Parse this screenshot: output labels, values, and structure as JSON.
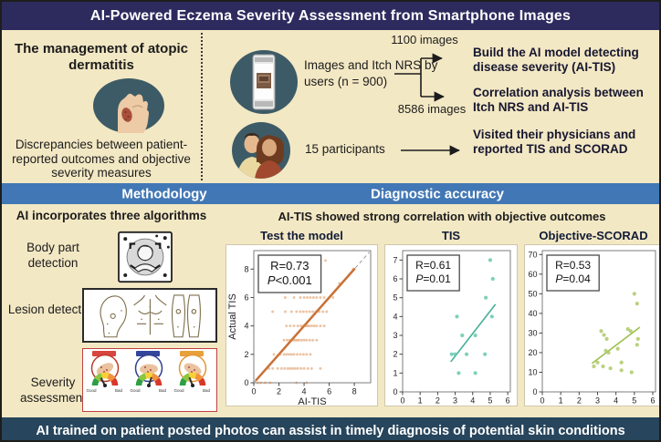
{
  "banner": {
    "title": "AI-Powered Eczema Severity Assessment from Smartphone Images"
  },
  "problem": {
    "heading": "The management of atopic dermatitis",
    "description": "Discrepancies between patient-reported outcomes and objective severity measures"
  },
  "study": {
    "phone_text": "Images and Itch NRS by users (n = 900)",
    "branch1_label": "1100 images",
    "branch1_text": "Build the AI model detecting disease severity (AI-TIS)",
    "branch2_label": "8586 images",
    "branch2_text": "Correlation analysis between Itch NRS and AI-TIS",
    "participants_label": "15 participants",
    "participants_text": "Visited their physicians and reported TIS and SCORAD"
  },
  "sections": {
    "methodology": "Methodology",
    "diagnostic": "Diagnostic accuracy"
  },
  "methodology": {
    "heading": "AI incorporates three algorithms",
    "steps": [
      {
        "label": "Body part detection"
      },
      {
        "label": "Lesion detection"
      },
      {
        "label": "Severity assessment"
      }
    ],
    "gauge": {
      "good": "Good",
      "bad": "Bad"
    },
    "severity_variants": [
      {
        "tag_color": "#d8453e",
        "circle_color": "#c0392b",
        "needle_deg": 118
      },
      {
        "tag_color": "#33459c",
        "circle_color": "#2f3f8f",
        "needle_deg": 72
      },
      {
        "tag_color": "#e8a03a",
        "circle_color": "#e2973a",
        "needle_deg": 112
      }
    ]
  },
  "diagnostic": {
    "heading": "AI-TIS showed strong correlation with objective outcomes"
  },
  "chart_data": [
    {
      "type": "scatter",
      "title": "Test the model",
      "xlabel": "AI-TIS",
      "ylabel": "Actual TIS",
      "xlim": [
        0,
        9.3
      ],
      "ylim": [
        0,
        9.3
      ],
      "xticks": [
        0,
        2,
        4,
        6,
        8
      ],
      "yticks": [
        0,
        2,
        4,
        6,
        8
      ],
      "stats": [
        "R=0.73",
        "P<0.001"
      ],
      "stats_font": 13,
      "point_color": "#d4803f",
      "point_opacity": 0.45,
      "point_radius": 1.5,
      "points": [
        [
          0.3,
          0
        ],
        [
          0.55,
          0
        ],
        [
          0.9,
          0
        ],
        [
          1.3,
          0
        ],
        [
          3.4,
          0
        ],
        [
          4.2,
          0
        ],
        [
          1.2,
          1
        ],
        [
          1.5,
          1
        ],
        [
          1.9,
          1
        ],
        [
          2.2,
          1
        ],
        [
          2.45,
          1
        ],
        [
          2.7,
          1
        ],
        [
          2.9,
          1
        ],
        [
          3.1,
          1
        ],
        [
          3.3,
          1
        ],
        [
          3.5,
          1
        ],
        [
          3.75,
          1
        ],
        [
          4.0,
          1
        ],
        [
          4.3,
          1
        ],
        [
          4.6,
          1
        ],
        [
          5.3,
          1
        ],
        [
          1.6,
          2
        ],
        [
          2.1,
          2
        ],
        [
          2.4,
          2
        ],
        [
          2.6,
          2
        ],
        [
          2.8,
          2
        ],
        [
          3.0,
          2
        ],
        [
          3.2,
          2
        ],
        [
          3.45,
          2
        ],
        [
          3.7,
          2
        ],
        [
          3.95,
          2
        ],
        [
          4.2,
          2
        ],
        [
          4.5,
          2
        ],
        [
          2.4,
          3
        ],
        [
          2.65,
          3
        ],
        [
          2.85,
          3
        ],
        [
          3.0,
          3
        ],
        [
          3.15,
          3
        ],
        [
          3.3,
          3
        ],
        [
          3.45,
          3
        ],
        [
          3.6,
          3
        ],
        [
          3.8,
          3
        ],
        [
          4.0,
          3
        ],
        [
          4.2,
          3
        ],
        [
          4.45,
          3
        ],
        [
          4.7,
          3
        ],
        [
          5.0,
          3
        ],
        [
          2.6,
          4
        ],
        [
          2.9,
          4
        ],
        [
          3.2,
          4
        ],
        [
          3.5,
          4
        ],
        [
          3.75,
          4
        ],
        [
          3.95,
          4
        ],
        [
          4.1,
          4
        ],
        [
          4.25,
          4
        ],
        [
          4.4,
          4
        ],
        [
          4.6,
          4
        ],
        [
          4.8,
          4
        ],
        [
          5.0,
          4
        ],
        [
          5.3,
          4
        ],
        [
          5.6,
          4
        ],
        [
          1.5,
          5
        ],
        [
          2.5,
          5
        ],
        [
          3.0,
          5
        ],
        [
          3.4,
          5
        ],
        [
          3.7,
          5
        ],
        [
          3.95,
          5
        ],
        [
          4.2,
          5
        ],
        [
          4.45,
          5
        ],
        [
          4.7,
          5
        ],
        [
          4.95,
          5
        ],
        [
          5.2,
          5
        ],
        [
          5.5,
          5
        ],
        [
          5.8,
          5
        ],
        [
          2.5,
          6
        ],
        [
          3.2,
          6
        ],
        [
          3.7,
          6
        ],
        [
          4.0,
          6
        ],
        [
          4.25,
          6
        ],
        [
          4.5,
          6
        ],
        [
          4.75,
          6
        ],
        [
          5.0,
          6
        ],
        [
          5.3,
          6
        ],
        [
          5.6,
          6
        ],
        [
          6.0,
          6
        ],
        [
          6.3,
          6
        ],
        [
          6.8,
          7
        ],
        [
          5.2,
          8
        ],
        [
          7.9,
          8
        ],
        [
          5.3,
          8.6
        ],
        [
          5.7,
          8.6
        ]
      ],
      "lines": [
        {
          "x1": 0,
          "y1": 0,
          "x2": 9.2,
          "y2": 9.2,
          "color": "#9a9a9a",
          "dash": true,
          "width": 1
        },
        {
          "x1": 0.15,
          "y1": 0.15,
          "x2": 8.05,
          "y2": 8.05,
          "color": "#c87137",
          "dash": false,
          "width": 2.5
        }
      ]
    },
    {
      "type": "scatter",
      "title": "TIS",
      "xlabel": "",
      "ylabel": "",
      "xlim": [
        0,
        6.15
      ],
      "ylim": [
        0,
        7.5
      ],
      "xticks": [
        0,
        1,
        2,
        3,
        4,
        5,
        6
      ],
      "yticks": [
        0,
        1,
        2,
        3,
        4,
        5,
        6,
        7
      ],
      "stats": [
        "R=0.61",
        "P=0.01"
      ],
      "stats_font": 12,
      "point_color": "#5fc4ab",
      "point_opacity": 0.8,
      "point_radius": 2.1,
      "points": [
        [
          5.0,
          7
        ],
        [
          5.15,
          6
        ],
        [
          4.75,
          5
        ],
        [
          3.1,
          4
        ],
        [
          5.1,
          4
        ],
        [
          3.4,
          3
        ],
        [
          4.15,
          3
        ],
        [
          2.8,
          2
        ],
        [
          3.0,
          2
        ],
        [
          3.65,
          2
        ],
        [
          4.7,
          2
        ],
        [
          3.2,
          1
        ],
        [
          4.15,
          1
        ]
      ],
      "lines": [
        {
          "x1": 2.75,
          "y1": 1.6,
          "x2": 5.3,
          "y2": 4.65,
          "color": "#45b098",
          "dash": false,
          "width": 1.6
        }
      ]
    },
    {
      "type": "scatter",
      "title": "Objective-SCORAD",
      "xlabel": "",
      "ylabel": "",
      "xlim": [
        0,
        6.15
      ],
      "ylim": [
        0,
        72
      ],
      "xticks": [
        0,
        1,
        2,
        3,
        4,
        5,
        6
      ],
      "yticks": [
        0,
        10,
        20,
        30,
        40,
        50,
        60,
        70
      ],
      "stats": [
        "R=0.53",
        "P=0.04"
      ],
      "stats_font": 12,
      "point_color": "#b3cc70",
      "point_opacity": 0.9,
      "point_radius": 2.1,
      "points": [
        [
          2.8,
          13
        ],
        [
          3.0,
          15
        ],
        [
          3.2,
          31
        ],
        [
          3.35,
          29
        ],
        [
          3.3,
          13
        ],
        [
          3.5,
          27
        ],
        [
          3.45,
          21
        ],
        [
          3.6,
          20
        ],
        [
          3.7,
          12
        ],
        [
          4.1,
          22
        ],
        [
          4.3,
          15
        ],
        [
          4.3,
          11
        ],
        [
          4.65,
          32
        ],
        [
          4.8,
          31
        ],
        [
          4.85,
          10
        ],
        [
          5.0,
          50
        ],
        [
          5.15,
          45
        ],
        [
          5.2,
          27
        ],
        [
          5.15,
          24
        ]
      ],
      "lines": [
        {
          "x1": 2.7,
          "y1": 14.5,
          "x2": 5.3,
          "y2": 33,
          "color": "#9ebf4e",
          "dash": false,
          "width": 1.6
        }
      ]
    }
  ],
  "footer": {
    "text": "AI trained on patient posted photos can assist in timely diagnosis of potential skin conditions"
  },
  "colors": {
    "banner-bg": "#2d2b5e",
    "panel-bg": "#f3e8c4",
    "bar-bg": "#4277b5",
    "footer-bg": "#27455c",
    "icon-bg": "#3d5b66",
    "text-dark": "#1c1c1c"
  }
}
